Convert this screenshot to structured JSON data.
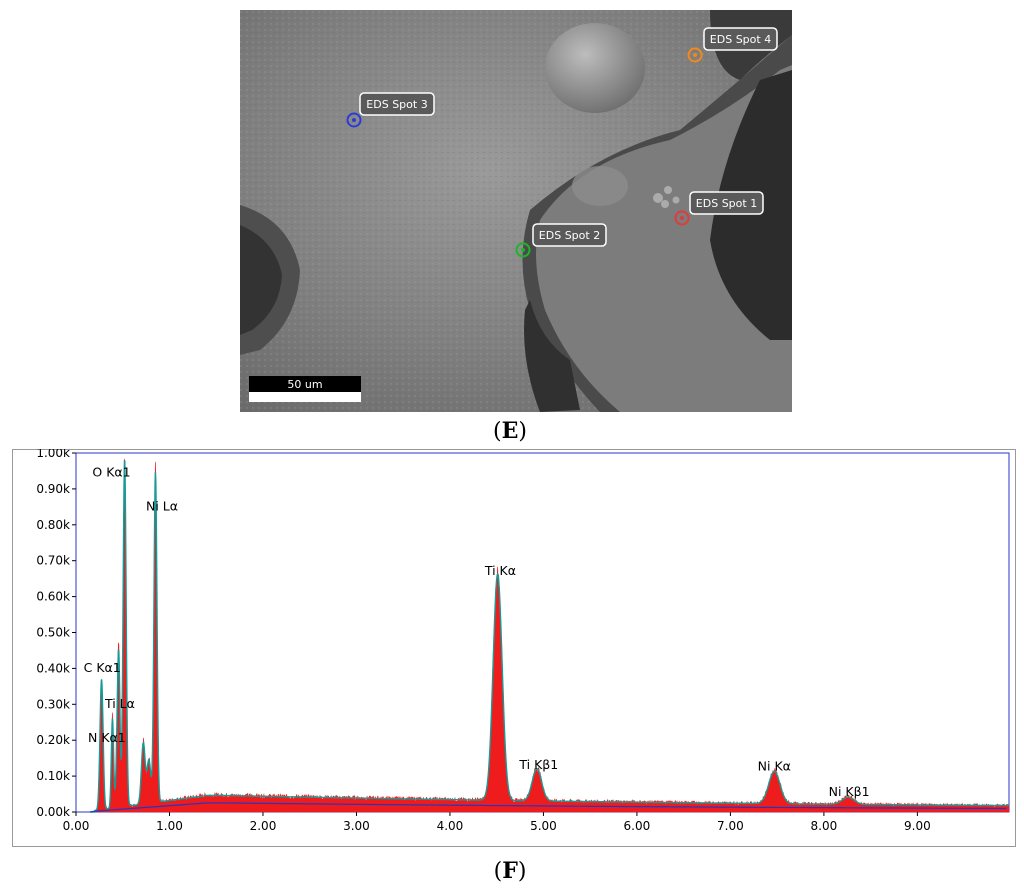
{
  "panel_e": {
    "label": "E",
    "scale_bar_label": "50 um",
    "spots": [
      {
        "name": "EDS Spot 1",
        "color": "#e03a3a"
      },
      {
        "name": "EDS Spot 2",
        "color": "#1db52a"
      },
      {
        "name": "EDS Spot 3",
        "color": "#2a3bd6"
      },
      {
        "name": "EDS Spot 4",
        "color": "#f08a1c"
      }
    ]
  },
  "panel_f": {
    "label": "F"
  },
  "chart_data": {
    "type": "line",
    "title": "",
    "xlabel": "",
    "ylabel": "",
    "xlim": [
      0,
      9.98
    ],
    "ylim": [
      0,
      1000
    ],
    "x_ticks": [
      "0.00",
      "1.00",
      "2.00",
      "3.00",
      "4.00",
      "5.00",
      "6.00",
      "7.00",
      "8.00",
      "9.00"
    ],
    "y_ticks": [
      "0.00k",
      "0.10k",
      "0.20k",
      "0.30k",
      "0.40k",
      "0.50k",
      "0.60k",
      "0.70k",
      "0.80k",
      "0.90k",
      "1.00k"
    ],
    "spectrum_color": "#ee1c1c",
    "fit_color": "#1a9a96",
    "background_color": "#1f36c8",
    "peaks": [
      {
        "label": "N  Kα1",
        "energy": 0.27,
        "counts": 260
      },
      {
        "label": "Ti Lα",
        "energy": 0.45,
        "counts": 270
      },
      {
        "label": "O  Kα1",
        "energy": 0.52,
        "counts": 970
      },
      {
        "label": "Ni Lα",
        "energy": 0.85,
        "counts": 920
      },
      {
        "label": "Ti Kα",
        "energy": 4.51,
        "counts": 630
      },
      {
        "label": "Ti Kβ1",
        "energy": 4.93,
        "counts": 90
      },
      {
        "label": "Ni Kα",
        "energy": 7.47,
        "counts": 90
      },
      {
        "label": "Ni Kβ1",
        "energy": 8.26,
        "counts": 20
      }
    ],
    "annotations": [
      {
        "text": "O  Kα1"
      },
      {
        "text": "Ni Lα"
      },
      {
        "text": "C  Kα1"
      },
      {
        "text": "Ti Lα"
      },
      {
        "text": "N  Kα1"
      },
      {
        "text": "Ti Kα"
      },
      {
        "text": "Ti Kβ1"
      },
      {
        "text": "Ni Kα"
      },
      {
        "text": "Ni Kβ1"
      }
    ]
  }
}
